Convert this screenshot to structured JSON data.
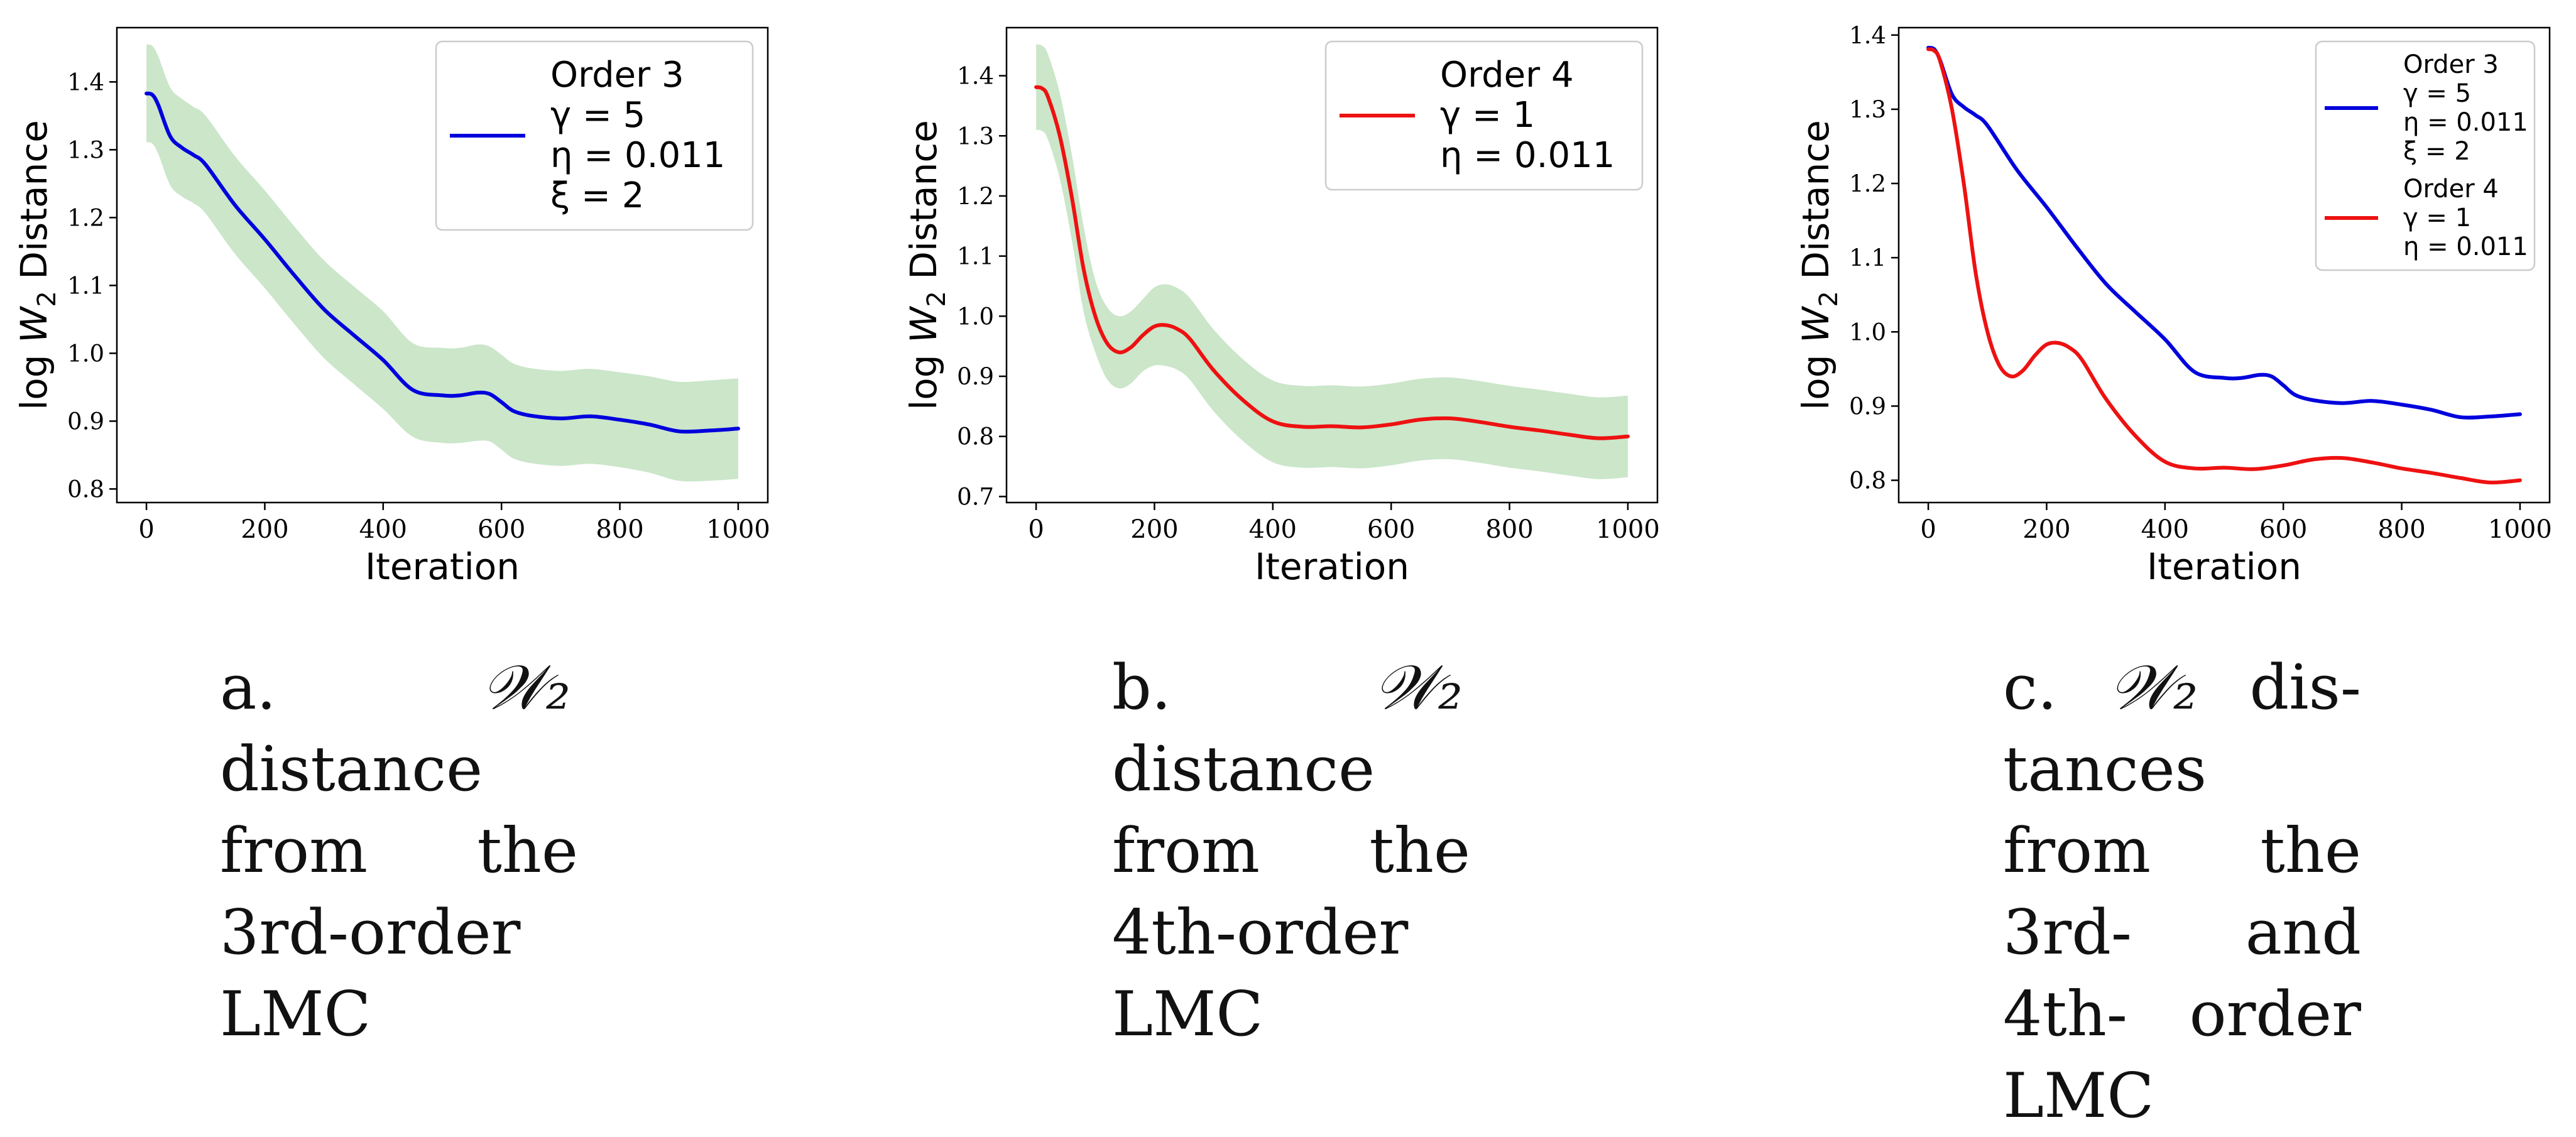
{
  "colors": {
    "order3": "#0000dd",
    "order4": "#ee1111",
    "band": "#a9d6a5",
    "axis": "#000000",
    "legend_border": "#cccccc"
  },
  "chart_data": [
    {
      "type": "line",
      "xlabel": "Iteration",
      "ylabel_parts": {
        "pre": "log",
        "sym": "W",
        "sub": "2",
        "post": " Distance"
      },
      "xlim": [
        -50,
        1050
      ],
      "ylim": [
        0.78,
        1.48
      ],
      "xticks": [
        0,
        200,
        400,
        600,
        800,
        1000
      ],
      "yticks": [
        0.8,
        0.9,
        1.0,
        1.1,
        1.2,
        1.3,
        1.4
      ],
      "ytick_labels": [
        "0.8",
        "0.9",
        "1.0",
        "1.1",
        "1.2",
        "1.3",
        "1.4"
      ],
      "grid": false,
      "legend": {
        "placement": "top-right",
        "large": true
      },
      "series": [
        {
          "name_lines": [
            "Order 3",
            "γ = 5",
            "η = 0.011",
            "ξ = 2"
          ],
          "color_key": "order3",
          "x": [
            0,
            10,
            20,
            40,
            60,
            80,
            100,
            150,
            200,
            250,
            300,
            350,
            400,
            450,
            500,
            530,
            560,
            580,
            600,
            620,
            650,
            700,
            750,
            800,
            850,
            900,
            950,
            1000
          ],
          "y": [
            1.383,
            1.381,
            1.366,
            1.32,
            1.303,
            1.292,
            1.278,
            1.218,
            1.168,
            1.115,
            1.065,
            1.027,
            0.99,
            0.946,
            0.938,
            0.938,
            0.942,
            0.94,
            0.928,
            0.915,
            0.908,
            0.904,
            0.907,
            0.902,
            0.895,
            0.885,
            0.886,
            0.889
          ],
          "band_upper": [
            1.455,
            1.453,
            1.438,
            1.392,
            1.375,
            1.363,
            1.35,
            1.29,
            1.24,
            1.187,
            1.137,
            1.099,
            1.062,
            1.015,
            1.008,
            1.008,
            1.013,
            1.01,
            0.998,
            0.985,
            0.978,
            0.974,
            0.977,
            0.972,
            0.966,
            0.958,
            0.96,
            0.963
          ],
          "band_lower": [
            1.311,
            1.309,
            1.294,
            1.248,
            1.231,
            1.221,
            1.206,
            1.146,
            1.096,
            1.043,
            0.993,
            0.955,
            0.918,
            0.877,
            0.868,
            0.868,
            0.871,
            0.87,
            0.858,
            0.845,
            0.838,
            0.834,
            0.837,
            0.832,
            0.824,
            0.812,
            0.812,
            0.815
          ]
        }
      ]
    },
    {
      "type": "line",
      "xlabel": "Iteration",
      "ylabel_parts": {
        "pre": "log",
        "sym": "W",
        "sub": "2",
        "post": " Distance"
      },
      "xlim": [
        -50,
        1050
      ],
      "ylim": [
        0.69,
        1.48
      ],
      "xticks": [
        0,
        200,
        400,
        600,
        800,
        1000
      ],
      "yticks": [
        0.7,
        0.8,
        0.9,
        1.0,
        1.1,
        1.2,
        1.3,
        1.4
      ],
      "ytick_labels": [
        "0.7",
        "0.8",
        "0.9",
        "1.0",
        "1.1",
        "1.2",
        "1.3",
        "1.4"
      ],
      "grid": false,
      "legend": {
        "placement": "top-right",
        "large": true
      },
      "series": [
        {
          "name_lines": [
            "Order 4",
            "γ = 1",
            "η = 0.011"
          ],
          "color_key": "order4",
          "x": [
            0,
            10,
            20,
            40,
            60,
            80,
            100,
            120,
            140,
            160,
            180,
            200,
            220,
            240,
            260,
            300,
            350,
            400,
            450,
            500,
            550,
            600,
            650,
            700,
            750,
            800,
            850,
            900,
            950,
            1000
          ],
          "y": [
            1.381,
            1.379,
            1.365,
            1.3,
            1.2,
            1.08,
            1.0,
            0.955,
            0.94,
            0.948,
            0.968,
            0.983,
            0.985,
            0.978,
            0.962,
            0.91,
            0.86,
            0.825,
            0.816,
            0.817,
            0.815,
            0.82,
            0.828,
            0.83,
            0.824,
            0.816,
            0.81,
            0.803,
            0.797,
            0.8
          ],
          "band_upper": [
            1.452,
            1.45,
            1.436,
            1.371,
            1.271,
            1.151,
            1.06,
            1.015,
            1.0,
            1.008,
            1.028,
            1.048,
            1.053,
            1.046,
            1.03,
            0.978,
            0.928,
            0.893,
            0.884,
            0.885,
            0.883,
            0.888,
            0.896,
            0.898,
            0.892,
            0.884,
            0.878,
            0.871,
            0.865,
            0.868
          ],
          "band_lower": [
            1.31,
            1.308,
            1.294,
            1.229,
            1.129,
            1.009,
            0.94,
            0.895,
            0.88,
            0.888,
            0.908,
            0.918,
            0.917,
            0.91,
            0.894,
            0.842,
            0.792,
            0.757,
            0.748,
            0.749,
            0.747,
            0.752,
            0.76,
            0.762,
            0.756,
            0.748,
            0.742,
            0.735,
            0.729,
            0.732
          ]
        }
      ]
    },
    {
      "type": "line",
      "xlabel": "Iteration",
      "ylabel_parts": {
        "pre": "log",
        "sym": "W",
        "sub": "2",
        "post": " Distance"
      },
      "xlim": [
        -50,
        1050
      ],
      "ylim": [
        0.77,
        1.41
      ],
      "xticks": [
        0,
        200,
        400,
        600,
        800,
        1000
      ],
      "yticks": [
        0.8,
        0.9,
        1.0,
        1.1,
        1.2,
        1.3,
        1.4
      ],
      "ytick_labels": [
        "0.8",
        "0.9",
        "1.0",
        "1.1",
        "1.2",
        "1.3",
        "1.4"
      ],
      "grid": false,
      "legend": {
        "placement": "top-right",
        "large": false
      },
      "series": [
        {
          "name_lines": [
            "Order 3",
            "γ = 5",
            "η = 0.011",
            "ξ = 2"
          ],
          "color_key": "order3",
          "x": [
            0,
            10,
            20,
            40,
            60,
            80,
            100,
            150,
            200,
            250,
            300,
            350,
            400,
            450,
            500,
            530,
            560,
            580,
            600,
            620,
            650,
            700,
            750,
            800,
            850,
            900,
            950,
            1000
          ],
          "y": [
            1.383,
            1.381,
            1.366,
            1.32,
            1.303,
            1.292,
            1.278,
            1.218,
            1.168,
            1.115,
            1.065,
            1.027,
            0.99,
            0.946,
            0.938,
            0.938,
            0.942,
            0.94,
            0.928,
            0.915,
            0.908,
            0.904,
            0.907,
            0.902,
            0.895,
            0.885,
            0.886,
            0.889
          ]
        },
        {
          "name_lines": [
            "Order 4",
            "γ = 1",
            "η = 0.011"
          ],
          "color_key": "order4",
          "x": [
            0,
            10,
            20,
            40,
            60,
            80,
            100,
            120,
            140,
            160,
            180,
            200,
            220,
            240,
            260,
            300,
            350,
            400,
            450,
            500,
            550,
            600,
            650,
            700,
            750,
            800,
            850,
            900,
            950,
            1000
          ],
          "y": [
            1.381,
            1.379,
            1.365,
            1.3,
            1.2,
            1.08,
            1.0,
            0.955,
            0.94,
            0.948,
            0.968,
            0.983,
            0.985,
            0.978,
            0.962,
            0.91,
            0.86,
            0.825,
            0.816,
            0.817,
            0.815,
            0.82,
            0.828,
            0.83,
            0.824,
            0.816,
            0.81,
            0.803,
            0.797,
            0.8
          ]
        }
      ]
    }
  ],
  "captions": [
    {
      "label": "a.",
      "sym": "𝒲₂",
      "rest": "distance from the 3rd-order LMC"
    },
    {
      "label": "b.",
      "sym": "𝒲₂",
      "rest": "distance from the 4th-order LMC"
    },
    {
      "label": "c.",
      "sym": "𝒲₂",
      "rest": "dis­tances from the 3rd- and 4th- order LMC"
    }
  ]
}
